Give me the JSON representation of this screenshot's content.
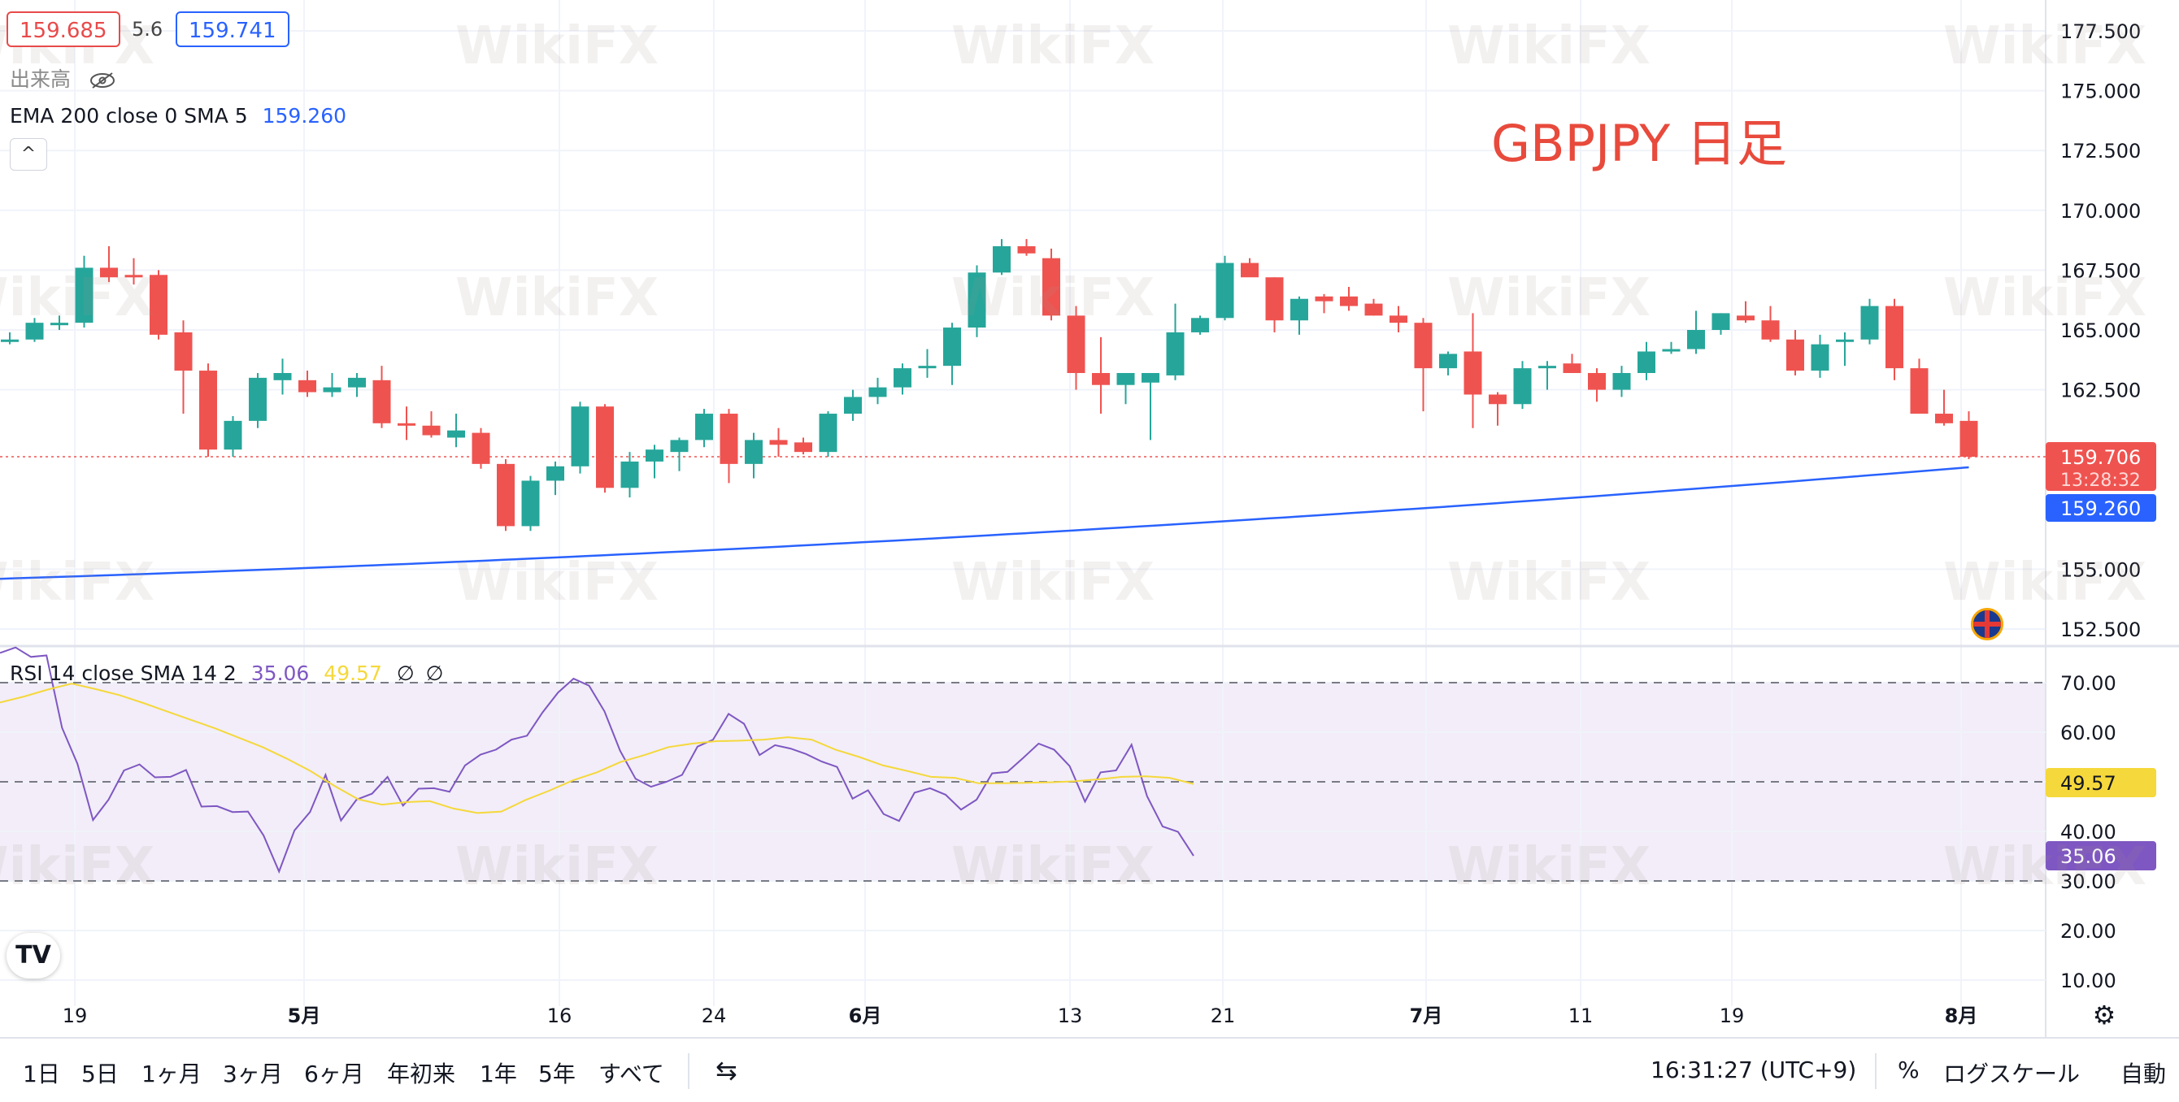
{
  "header": {
    "bid": "159.685",
    "spread": "5.6",
    "ask": "159.741",
    "volume_label": "出来高",
    "ema_label": "EMA 200 close 0 SMA 5",
    "ema_value": "159.260",
    "collapse_icon": "chevron-up-icon"
  },
  "chart_title": "GBPJPY 日足",
  "watermark": "WikiFX",
  "rsi_legend": {
    "label": "RSI 14 close SMA 14 2",
    "rsi_value": "35.06",
    "sma_value": "49.57",
    "icons": [
      "eye-off-icon",
      "eye-off-icon"
    ]
  },
  "price_tags": {
    "last_price": "159.706",
    "countdown": "13:28:32",
    "ema": "159.260",
    "rsi_sma": "49.57",
    "rsi": "35.06"
  },
  "bottom_bar": {
    "ranges": [
      "1日",
      "5日",
      "1ヶ月",
      "3ヶ月",
      "6ヶ月",
      "年初来",
      "1年",
      "5年",
      "すべて"
    ],
    "time": "16:31:27 (UTC+9)",
    "percent": "%",
    "log_scale": "ログスケール",
    "auto": "自動"
  },
  "colors": {
    "up": "#26a69a",
    "down": "#ef5350",
    "ema": "#2962ff",
    "rsi": "#7e57c2",
    "rsi_sma": "#f5d83b",
    "title": "#e84a3c"
  },
  "chart_data": [
    {
      "type": "candlestick",
      "title": "GBPJPY 日足",
      "x_ticks": [
        "19",
        "5月",
        "16",
        "24",
        "6月",
        "13",
        "21",
        "7月",
        "11",
        "19",
        "8月"
      ],
      "y_ticks": [
        "152.500",
        "155.000",
        "162.500",
        "165.000",
        "167.500",
        "170.000",
        "172.500",
        "175.000",
        "177.500"
      ],
      "ylim": [
        152.0,
        178.0
      ],
      "grid": true,
      "candles": [
        [
          164.5,
          164.9,
          164.4,
          164.6
        ],
        [
          164.6,
          165.5,
          164.5,
          165.3
        ],
        [
          165.2,
          165.6,
          165.0,
          165.3
        ],
        [
          165.3,
          168.1,
          165.1,
          167.6
        ],
        [
          167.6,
          168.5,
          167.0,
          167.2
        ],
        [
          167.3,
          168.0,
          166.9,
          167.2
        ],
        [
          167.3,
          167.5,
          164.6,
          164.8
        ],
        [
          164.9,
          165.4,
          161.5,
          163.3
        ],
        [
          163.3,
          163.6,
          159.7,
          160.0
        ],
        [
          160.0,
          161.4,
          159.7,
          161.2
        ],
        [
          161.2,
          163.2,
          160.9,
          163.0
        ],
        [
          162.9,
          163.8,
          162.3,
          163.2
        ],
        [
          162.9,
          163.3,
          162.2,
          162.4
        ],
        [
          162.4,
          163.2,
          162.2,
          162.6
        ],
        [
          162.6,
          163.2,
          162.2,
          163.0
        ],
        [
          162.9,
          163.5,
          160.9,
          161.1
        ],
        [
          161.1,
          161.8,
          160.4,
          161.0
        ],
        [
          161.0,
          161.6,
          160.5,
          160.6
        ],
        [
          160.5,
          161.5,
          160.1,
          160.8
        ],
        [
          160.7,
          160.9,
          159.2,
          159.4
        ],
        [
          159.4,
          159.6,
          156.6,
          156.8
        ],
        [
          156.8,
          158.9,
          156.6,
          158.7
        ],
        [
          158.7,
          159.5,
          158.1,
          159.3
        ],
        [
          159.3,
          162.0,
          159.0,
          161.8
        ],
        [
          161.8,
          161.9,
          158.2,
          158.4
        ],
        [
          158.4,
          159.9,
          158.0,
          159.5
        ],
        [
          159.5,
          160.2,
          158.8,
          160.0
        ],
        [
          159.9,
          160.5,
          159.1,
          160.4
        ],
        [
          160.4,
          161.7,
          160.1,
          161.5
        ],
        [
          161.5,
          161.7,
          158.6,
          159.4
        ],
        [
          159.4,
          160.7,
          158.8,
          160.4
        ],
        [
          160.4,
          160.9,
          159.7,
          160.2
        ],
        [
          160.3,
          160.5,
          159.8,
          159.9
        ],
        [
          159.9,
          161.6,
          159.7,
          161.5
        ],
        [
          161.5,
          162.5,
          161.2,
          162.2
        ],
        [
          162.2,
          163.0,
          161.9,
          162.6
        ],
        [
          162.6,
          163.6,
          162.3,
          163.4
        ],
        [
          163.4,
          164.2,
          163.0,
          163.5
        ],
        [
          163.5,
          165.3,
          162.7,
          165.1
        ],
        [
          165.1,
          167.7,
          164.7,
          167.4
        ],
        [
          167.4,
          168.8,
          167.3,
          168.5
        ],
        [
          168.5,
          168.8,
          168.1,
          168.2
        ],
        [
          168.0,
          168.4,
          165.4,
          165.6
        ],
        [
          165.6,
          166.0,
          162.5,
          163.2
        ],
        [
          163.2,
          164.7,
          161.5,
          162.7
        ],
        [
          162.7,
          163.1,
          161.9,
          163.2
        ],
        [
          162.8,
          163.2,
          160.4,
          163.2
        ],
        [
          163.1,
          166.1,
          162.9,
          164.9
        ],
        [
          164.9,
          165.6,
          164.8,
          165.5
        ],
        [
          165.5,
          168.1,
          165.4,
          167.8
        ],
        [
          167.8,
          168.0,
          167.3,
          167.2
        ],
        [
          167.2,
          167.2,
          164.9,
          165.4
        ],
        [
          165.4,
          166.4,
          164.8,
          166.3
        ],
        [
          166.4,
          166.5,
          165.7,
          166.2
        ],
        [
          166.4,
          166.8,
          165.8,
          166.0
        ],
        [
          166.1,
          166.3,
          165.6,
          165.6
        ],
        [
          165.6,
          166.0,
          164.9,
          165.3
        ],
        [
          165.3,
          165.5,
          161.6,
          163.4
        ],
        [
          163.4,
          164.1,
          163.1,
          164.0
        ],
        [
          164.1,
          165.7,
          160.9,
          162.3
        ],
        [
          162.3,
          162.4,
          161.0,
          161.9
        ],
        [
          161.9,
          163.7,
          161.7,
          163.4
        ],
        [
          163.4,
          163.7,
          162.5,
          163.5
        ],
        [
          163.6,
          164.0,
          163.2,
          163.2
        ],
        [
          163.2,
          163.4,
          162.0,
          162.5
        ],
        [
          162.5,
          163.5,
          162.2,
          163.2
        ],
        [
          163.2,
          164.5,
          162.9,
          164.1
        ],
        [
          164.1,
          164.5,
          164.0,
          164.2
        ],
        [
          164.2,
          165.8,
          164.0,
          165.0
        ],
        [
          165.0,
          165.7,
          164.8,
          165.7
        ],
        [
          165.6,
          166.2,
          165.3,
          165.4
        ],
        [
          165.4,
          166.0,
          164.5,
          164.6
        ],
        [
          164.6,
          165.0,
          163.1,
          163.3
        ],
        [
          163.3,
          164.8,
          163.0,
          164.4
        ],
        [
          164.6,
          164.9,
          163.5,
          164.6
        ],
        [
          164.6,
          166.3,
          164.4,
          166.0
        ],
        [
          166.0,
          166.3,
          162.9,
          163.4
        ],
        [
          163.4,
          163.8,
          161.5,
          161.5
        ],
        [
          161.5,
          162.5,
          161.0,
          161.1
        ],
        [
          161.2,
          161.6,
          159.6,
          159.7
        ]
      ],
      "ema_200": {
        "start": 154.6,
        "end": 159.26
      }
    },
    {
      "type": "line",
      "name": "RSI 14 close SMA 14 2",
      "y_ticks": [
        "10.00",
        "20.00",
        "30.00",
        "40.00",
        "50.00",
        "60.00",
        "70.00"
      ],
      "ylim": [
        8.0,
        76.0
      ],
      "band": [
        30,
        70
      ],
      "midline": 50,
      "series": [
        {
          "values": [
            76.0,
            77.1,
            75.2,
            75.5,
            60.9,
            53.6,
            42.3,
            46.4,
            52.3,
            53.5,
            50.9,
            51.0,
            52.4,
            45.0,
            45.1,
            43.9,
            44.0,
            39.2,
            31.9,
            40.2,
            43.9,
            51.4,
            42.2,
            46.4,
            47.6,
            51.0,
            45.2,
            48.6,
            48.7,
            48.0,
            53.3,
            55.5,
            56.5,
            58.5,
            59.3,
            64.0,
            68.0,
            70.8,
            69.4,
            64.2,
            56.3,
            50.6,
            49.0,
            50.0,
            51.4,
            57.1,
            58.5,
            63.7,
            61.7,
            55.4,
            57.4,
            56.7,
            55.6,
            54.1,
            53.0,
            46.6,
            48.3,
            43.5,
            42.1,
            47.8,
            48.7,
            47.4,
            44.4,
            46.4,
            51.7,
            52.0,
            54.8,
            57.7,
            56.5,
            53.2,
            46.0,
            51.9,
            52.3,
            57.5,
            47.1,
            41.0,
            39.9,
            35.06
          ]
        },
        {
          "values": [
            66.0,
            67.2,
            68.6,
            69.8,
            68.7,
            67.5,
            65.9,
            64.2,
            62.5,
            60.8,
            58.9,
            57.0,
            54.7,
            52.2,
            49.2,
            46.5,
            45.4,
            45.9,
            46.1,
            44.6,
            43.7,
            44.0,
            46.3,
            48.2,
            50.3,
            51.9,
            54.0,
            55.4,
            57.0,
            57.7,
            58.2,
            58.3,
            58.5,
            59.0,
            58.5,
            56.5,
            55.0,
            53.3,
            52.2,
            51.0,
            50.8,
            49.7,
            49.7,
            49.8,
            49.9,
            50.1,
            50.5,
            51.0,
            51.1,
            50.8,
            49.57
          ]
        }
      ]
    }
  ]
}
